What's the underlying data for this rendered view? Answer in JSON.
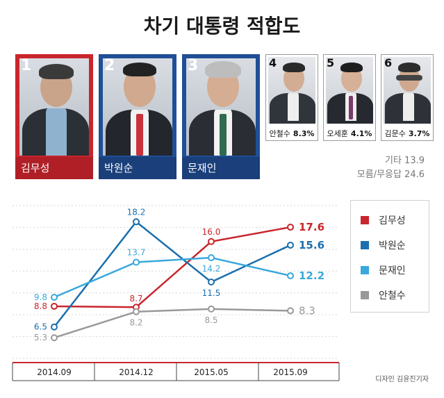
{
  "title": "차기 대통령 적합도",
  "top3": [
    {
      "rank": "1",
      "name": "김무성",
      "pct": "17.6%",
      "color": "#c9252c",
      "bar": "#b01f26"
    },
    {
      "rank": "2",
      "name": "박원순",
      "pct": "15.6%",
      "color": "#1f4f96",
      "bar": "#1a3f7a"
    },
    {
      "rank": "3",
      "name": "문재인",
      "pct": "12.2%",
      "color": "#1f4f96",
      "bar": "#1a3f7a"
    }
  ],
  "others": [
    {
      "rank": "4",
      "name": "안철수",
      "pct": "8.3%"
    },
    {
      "rank": "5",
      "name": "오세훈",
      "pct": "4.1%"
    },
    {
      "rank": "6",
      "name": "김문수",
      "pct": "3.7%"
    }
  ],
  "etc_label": "기타 13.9",
  "none_label": "모름/무응답 24.6",
  "credit": "디자인 김윤진기자",
  "chart_data": {
    "type": "line",
    "categories": [
      "2014.09",
      "2014.12",
      "2015.05",
      "2015.09"
    ],
    "ylim": [
      3,
      20
    ],
    "series": [
      {
        "name": "김무성",
        "color": "#c9252c",
        "values": [
          8.8,
          8.7,
          16.0,
          17.6
        ],
        "labels": [
          "8.8",
          "8.7",
          "16.0",
          "17.6"
        ]
      },
      {
        "name": "박원순",
        "color": "#1b6fae",
        "values": [
          6.5,
          18.2,
          11.5,
          15.6
        ],
        "labels": [
          "6.5",
          "18.2",
          "11.5",
          "15.6"
        ]
      },
      {
        "name": "문재인",
        "color": "#3aa8dc",
        "values": [
          9.8,
          13.7,
          14.2,
          12.2
        ],
        "labels": [
          "9.8",
          "13.7",
          "14.2",
          "12.2"
        ]
      },
      {
        "name": "안철수",
        "color": "#999999",
        "values": [
          5.3,
          8.2,
          8.5,
          8.3
        ],
        "labels": [
          "5.3",
          "8.2",
          "8.5",
          "8.3"
        ]
      }
    ]
  }
}
